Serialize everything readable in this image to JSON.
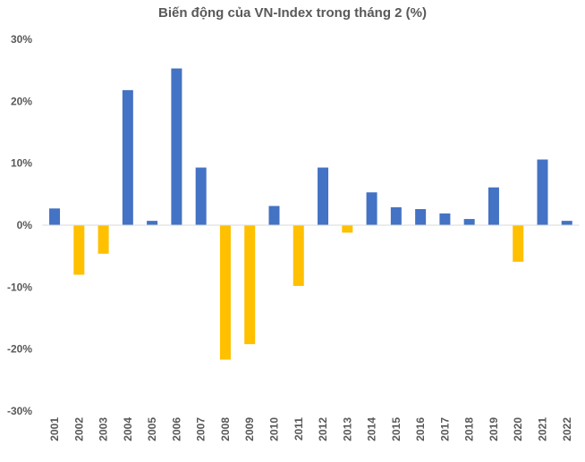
{
  "chart_data": {
    "type": "bar",
    "title": "Biến động của VN-Index trong tháng 2 (%)",
    "xlabel": "",
    "ylabel": "",
    "ylim": [
      -30,
      30
    ],
    "yticks": [
      30,
      20,
      10,
      0,
      -10,
      -20,
      -30
    ],
    "ytick_labels": [
      "30%",
      "20%",
      "10%",
      "0%",
      "-10%",
      "-20%",
      "-30%"
    ],
    "grid": false,
    "legend": "none",
    "categories": [
      "2001",
      "2002",
      "2003",
      "2004",
      "2005",
      "2006",
      "2007",
      "2008",
      "2009",
      "2010",
      "2011",
      "2012",
      "2013",
      "2014",
      "2015",
      "2016",
      "2017",
      "2018",
      "2019",
      "2020",
      "2021",
      "2022"
    ],
    "values": [
      2.7,
      -8.0,
      -4.6,
      21.8,
      0.7,
      25.3,
      9.3,
      -21.7,
      -19.2,
      3.1,
      -9.8,
      9.3,
      -1.2,
      5.3,
      2.9,
      2.6,
      1.9,
      1.0,
      6.1,
      -5.9,
      10.6,
      0.7
    ],
    "colors": {
      "positive": "#4472C4",
      "negative": "#FFC000",
      "axis": "#D9D9D9"
    }
  }
}
